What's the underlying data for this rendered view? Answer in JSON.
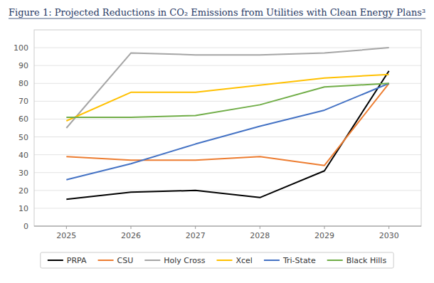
{
  "chart_data": {
    "type": "line",
    "title": "Figure 1: Projected Reductions in CO₂ Emissions from Utilities with Clean Energy Plans³",
    "x": [
      2025,
      2026,
      2027,
      2028,
      2029,
      2030
    ],
    "xlim": [
      2024.5,
      2030.5
    ],
    "xticks": [
      2025,
      2026,
      2027,
      2028,
      2029,
      2030
    ],
    "ylim": [
      0,
      110
    ],
    "yticks": [
      0,
      10,
      20,
      30,
      40,
      50,
      60,
      70,
      80,
      90,
      100
    ],
    "grid": true,
    "legend": "bottom",
    "series": [
      {
        "name": "PRPA",
        "color": "#000000",
        "values": [
          15,
          19,
          20,
          16,
          31,
          87
        ]
      },
      {
        "name": "CSU",
        "color": "#ED7D31",
        "values": [
          39,
          37,
          37,
          39,
          34,
          80
        ]
      },
      {
        "name": "Holy Cross",
        "color": "#A5A5A5",
        "values": [
          55,
          97,
          96,
          96,
          97,
          100
        ]
      },
      {
        "name": "Xcel",
        "color": "#FFC000",
        "values": [
          59,
          75,
          75,
          79,
          83,
          85
        ]
      },
      {
        "name": "Tri-State",
        "color": "#4472C4",
        "values": [
          26,
          35,
          46,
          56,
          65,
          80
        ]
      },
      {
        "name": "Black Hills",
        "color": "#70AD47",
        "values": [
          61,
          61,
          62,
          68,
          78,
          80
        ]
      }
    ]
  }
}
